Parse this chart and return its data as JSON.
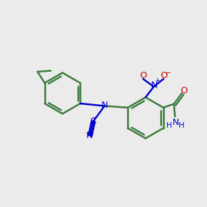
{
  "bg_color": "#ebebeb",
  "bond_color": "#3a7a3a",
  "bond_width": 1.8,
  "figsize": [
    3.0,
    3.0
  ],
  "dpi": 100,
  "atom_colors": {
    "N": "#0000cc",
    "O": "#cc0000",
    "C": "#3a7a3a"
  },
  "font_size": 9.5,
  "font_size_small": 8.0
}
